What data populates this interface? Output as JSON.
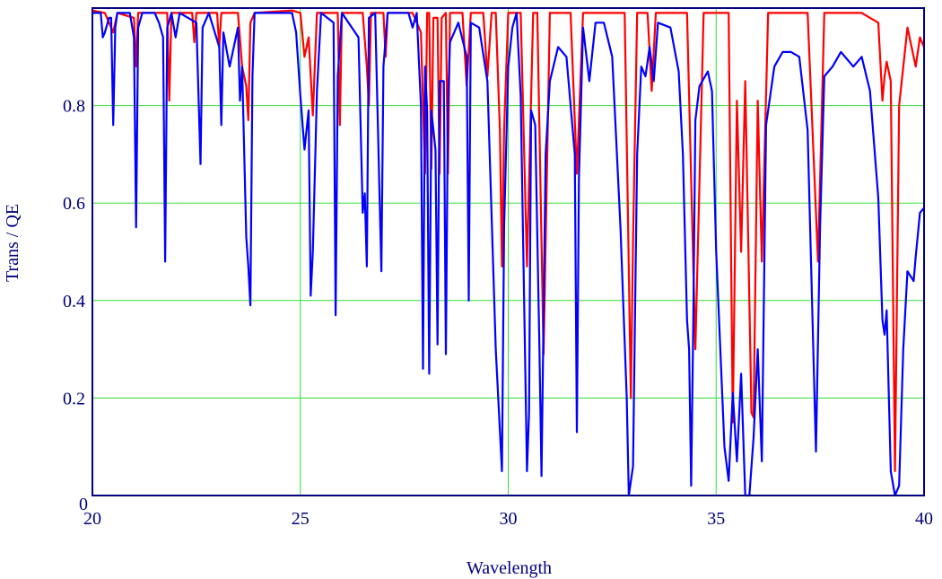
{
  "chart_data": {
    "type": "line",
    "title": "",
    "xlabel": "Wavelength",
    "ylabel": "Trans / QE",
    "xlim": [
      20,
      40
    ],
    "ylim": [
      0,
      1.0
    ],
    "x_ticks": [
      "20",
      "25",
      "30",
      "35",
      "40"
    ],
    "y_ticks": [
      "0",
      "0.2",
      "0.4",
      "0.6",
      "0.8"
    ],
    "x_tick_values": [
      20,
      25,
      30,
      35,
      40
    ],
    "y_tick_values": [
      0,
      0.2,
      0.4,
      0.6,
      0.8
    ],
    "grid": true,
    "colors": {
      "grid": "#33dd33",
      "frame": "#000080",
      "text": "#000080"
    },
    "series": [
      {
        "color": "#ff0000",
        "points": [
          [
            20,
            0.995
          ],
          [
            20.3,
            0.99
          ],
          [
            20.5,
            0.95
          ],
          [
            20.6,
            0.99
          ],
          [
            21,
            0.98
          ],
          [
            21.05,
            0.88
          ],
          [
            21.1,
            0.99
          ],
          [
            21.8,
            0.99
          ],
          [
            21.85,
            0.81
          ],
          [
            21.9,
            0.99
          ],
          [
            22.4,
            0.99
          ],
          [
            22.45,
            0.93
          ],
          [
            22.5,
            0.99
          ],
          [
            23.0,
            0.99
          ],
          [
            23.05,
            0.92
          ],
          [
            23.1,
            0.99
          ],
          [
            23.5,
            0.99
          ],
          [
            23.6,
            0.88
          ],
          [
            23.7,
            0.84
          ],
          [
            23.75,
            0.77
          ],
          [
            23.8,
            0.97
          ],
          [
            23.9,
            0.99
          ],
          [
            24.8,
            0.995
          ],
          [
            25.0,
            0.99
          ],
          [
            25.1,
            0.9
          ],
          [
            25.2,
            0.94
          ],
          [
            25.3,
            0.78
          ],
          [
            25.4,
            0.99
          ],
          [
            25.9,
            0.99
          ],
          [
            25.95,
            0.76
          ],
          [
            26.0,
            0.99
          ],
          [
            26.5,
            0.99
          ],
          [
            26.6,
            0.88
          ],
          [
            26.65,
            0.8
          ],
          [
            26.7,
            0.99
          ],
          [
            27.0,
            0.99
          ],
          [
            27.05,
            0.9
          ],
          [
            27.1,
            0.99
          ],
          [
            27.7,
            0.99
          ],
          [
            27.9,
            0.95
          ],
          [
            28.0,
            0.66
          ],
          [
            28.05,
            0.99
          ],
          [
            28.1,
            0.99
          ],
          [
            28.15,
            0.67
          ],
          [
            28.2,
            0.98
          ],
          [
            28.3,
            0.98
          ],
          [
            28.35,
            0.66
          ],
          [
            28.4,
            0.98
          ],
          [
            28.5,
            0.99
          ],
          [
            28.55,
            0.66
          ],
          [
            28.6,
            0.99
          ],
          [
            28.9,
            0.99
          ],
          [
            29.0,
            0.84
          ],
          [
            29.1,
            0.99
          ],
          [
            29.4,
            0.99
          ],
          [
            29.5,
            0.86
          ],
          [
            29.6,
            0.99
          ],
          [
            29.7,
            0.99
          ],
          [
            29.8,
            0.75
          ],
          [
            29.85,
            0.47
          ],
          [
            29.9,
            0.75
          ],
          [
            30.0,
            0.99
          ],
          [
            30.3,
            0.99
          ],
          [
            30.45,
            0.47
          ],
          [
            30.6,
            0.99
          ],
          [
            30.7,
            0.99
          ],
          [
            30.85,
            0.29
          ],
          [
            31.0,
            0.99
          ],
          [
            31.5,
            0.99
          ],
          [
            31.65,
            0.66
          ],
          [
            31.8,
            0.99
          ],
          [
            32.8,
            0.99
          ],
          [
            32.95,
            0.2
          ],
          [
            33.0,
            0.52
          ],
          [
            33.1,
            0.99
          ],
          [
            33.35,
            0.99
          ],
          [
            33.45,
            0.83
          ],
          [
            33.55,
            0.99
          ],
          [
            34.3,
            0.99
          ],
          [
            34.5,
            0.3
          ],
          [
            34.7,
            0.99
          ],
          [
            35.3,
            0.99
          ],
          [
            35.4,
            0.15
          ],
          [
            35.5,
            0.81
          ],
          [
            35.6,
            0.5
          ],
          [
            35.7,
            0.85
          ],
          [
            35.85,
            0.17
          ],
          [
            35.9,
            0.16
          ],
          [
            36.0,
            0.81
          ],
          [
            36.1,
            0.48
          ],
          [
            36.25,
            0.99
          ],
          [
            37.2,
            0.99
          ],
          [
            37.45,
            0.48
          ],
          [
            37.6,
            0.99
          ],
          [
            38.5,
            0.99
          ],
          [
            38.9,
            0.97
          ],
          [
            39.0,
            0.81
          ],
          [
            39.05,
            0.86
          ],
          [
            39.1,
            0.89
          ],
          [
            39.2,
            0.85
          ],
          [
            39.3,
            0.05
          ],
          [
            39.4,
            0.8
          ],
          [
            39.6,
            0.96
          ],
          [
            39.8,
            0.88
          ],
          [
            39.9,
            0.94
          ],
          [
            40.0,
            0.92
          ]
        ]
      },
      {
        "color": "#0000ff",
        "points": [
          [
            20,
            0.99
          ],
          [
            20.1,
            0.99
          ],
          [
            20.2,
            0.99
          ],
          [
            20.25,
            0.94
          ],
          [
            20.3,
            0.95
          ],
          [
            20.4,
            0.98
          ],
          [
            20.45,
            0.98
          ],
          [
            20.5,
            0.76
          ],
          [
            20.55,
            0.96
          ],
          [
            20.6,
            0.99
          ],
          [
            20.9,
            0.99
          ],
          [
            21.0,
            0.94
          ],
          [
            21.05,
            0.55
          ],
          [
            21.1,
            0.96
          ],
          [
            21.2,
            0.99
          ],
          [
            21.5,
            0.99
          ],
          [
            21.6,
            0.97
          ],
          [
            21.7,
            0.94
          ],
          [
            21.75,
            0.48
          ],
          [
            21.8,
            0.96
          ],
          [
            21.9,
            0.99
          ],
          [
            22.0,
            0.94
          ],
          [
            22.1,
            0.99
          ],
          [
            22.5,
            0.97
          ],
          [
            22.6,
            0.68
          ],
          [
            22.65,
            0.96
          ],
          [
            22.8,
            0.99
          ],
          [
            23.05,
            0.92
          ],
          [
            23.1,
            0.76
          ],
          [
            23.15,
            0.95
          ],
          [
            23.3,
            0.88
          ],
          [
            23.5,
            0.96
          ],
          [
            23.55,
            0.81
          ],
          [
            23.6,
            0.88
          ],
          [
            23.7,
            0.53
          ],
          [
            23.75,
            0.47
          ],
          [
            23.8,
            0.39
          ],
          [
            23.85,
            0.86
          ],
          [
            23.9,
            0.99
          ],
          [
            24.3,
            0.99
          ],
          [
            24.5,
            0.99
          ],
          [
            24.8,
            0.99
          ],
          [
            24.9,
            0.95
          ],
          [
            25.0,
            0.82
          ],
          [
            25.1,
            0.71
          ],
          [
            25.2,
            0.79
          ],
          [
            25.25,
            0.41
          ],
          [
            25.3,
            0.5
          ],
          [
            25.4,
            0.83
          ],
          [
            25.5,
            0.99
          ],
          [
            25.8,
            0.97
          ],
          [
            25.85,
            0.37
          ],
          [
            25.9,
            0.86
          ],
          [
            26.0,
            0.99
          ],
          [
            26.4,
            0.94
          ],
          [
            26.5,
            0.58
          ],
          [
            26.55,
            0.62
          ],
          [
            26.6,
            0.47
          ],
          [
            26.65,
            0.98
          ],
          [
            26.8,
            0.99
          ],
          [
            26.95,
            0.46
          ],
          [
            27.0,
            0.88
          ],
          [
            27.1,
            0.99
          ],
          [
            27.6,
            0.99
          ],
          [
            27.7,
            0.96
          ],
          [
            27.8,
            0.99
          ],
          [
            27.9,
            0.8
          ],
          [
            27.95,
            0.26
          ],
          [
            28.0,
            0.88
          ],
          [
            28.05,
            0.79
          ],
          [
            28.1,
            0.25
          ],
          [
            28.15,
            0.79
          ],
          [
            28.25,
            0.71
          ],
          [
            28.3,
            0.31
          ],
          [
            28.35,
            0.85
          ],
          [
            28.45,
            0.85
          ],
          [
            28.5,
            0.29
          ],
          [
            28.55,
            0.8
          ],
          [
            28.6,
            0.93
          ],
          [
            28.8,
            0.97
          ],
          [
            29.0,
            0.9
          ],
          [
            29.05,
            0.4
          ],
          [
            29.1,
            0.97
          ],
          [
            29.3,
            0.96
          ],
          [
            29.5,
            0.85
          ],
          [
            29.7,
            0.3
          ],
          [
            29.85,
            0.05
          ],
          [
            29.9,
            0.55
          ],
          [
            30.0,
            0.88
          ],
          [
            30.1,
            0.96
          ],
          [
            30.2,
            0.99
          ],
          [
            30.3,
            0.82
          ],
          [
            30.45,
            0.05
          ],
          [
            30.5,
            0.17
          ],
          [
            30.55,
            0.79
          ],
          [
            30.65,
            0.76
          ],
          [
            30.75,
            0.3
          ],
          [
            30.8,
            0.04
          ],
          [
            30.9,
            0.7
          ],
          [
            31.0,
            0.85
          ],
          [
            31.2,
            0.92
          ],
          [
            31.4,
            0.9
          ],
          [
            31.6,
            0.7
          ],
          [
            31.65,
            0.13
          ],
          [
            31.7,
            0.65
          ],
          [
            31.8,
            0.96
          ],
          [
            31.95,
            0.85
          ],
          [
            32.1,
            0.97
          ],
          [
            32.3,
            0.97
          ],
          [
            32.5,
            0.9
          ],
          [
            32.7,
            0.55
          ],
          [
            32.85,
            0.2
          ],
          [
            32.9,
            0.0
          ],
          [
            33.0,
            0.06
          ],
          [
            33.1,
            0.7
          ],
          [
            33.2,
            0.88
          ],
          [
            33.3,
            0.86
          ],
          [
            33.4,
            0.92
          ],
          [
            33.5,
            0.85
          ],
          [
            33.6,
            0.97
          ],
          [
            33.9,
            0.96
          ],
          [
            34.1,
            0.87
          ],
          [
            34.2,
            0.7
          ],
          [
            34.3,
            0.36
          ],
          [
            34.35,
            0.3
          ],
          [
            34.4,
            0.02
          ],
          [
            34.45,
            0.36
          ],
          [
            34.5,
            0.77
          ],
          [
            34.6,
            0.84
          ],
          [
            34.8,
            0.87
          ],
          [
            34.9,
            0.83
          ],
          [
            35.0,
            0.5
          ],
          [
            35.2,
            0.1
          ],
          [
            35.3,
            0.03
          ],
          [
            35.4,
            0.21
          ],
          [
            35.5,
            0.07
          ],
          [
            35.6,
            0.25
          ],
          [
            35.7,
            0.0
          ],
          [
            35.8,
            0.0
          ],
          [
            35.9,
            0.12
          ],
          [
            36.0,
            0.3
          ],
          [
            36.1,
            0.07
          ],
          [
            36.2,
            0.76
          ],
          [
            36.4,
            0.88
          ],
          [
            36.6,
            0.91
          ],
          [
            36.8,
            0.91
          ],
          [
            37.0,
            0.9
          ],
          [
            37.2,
            0.75
          ],
          [
            37.4,
            0.09
          ],
          [
            37.5,
            0.55
          ],
          [
            37.6,
            0.86
          ],
          [
            37.8,
            0.88
          ],
          [
            38.0,
            0.91
          ],
          [
            38.3,
            0.88
          ],
          [
            38.5,
            0.9
          ],
          [
            38.7,
            0.83
          ],
          [
            38.9,
            0.61
          ],
          [
            39.0,
            0.36
          ],
          [
            39.05,
            0.33
          ],
          [
            39.1,
            0.38
          ],
          [
            39.2,
            0.05
          ],
          [
            39.3,
            0.0
          ],
          [
            39.4,
            0.02
          ],
          [
            39.5,
            0.3
          ],
          [
            39.6,
            0.46
          ],
          [
            39.75,
            0.44
          ],
          [
            39.8,
            0.49
          ],
          [
            39.9,
            0.58
          ],
          [
            40.0,
            0.59
          ]
        ]
      }
    ]
  }
}
